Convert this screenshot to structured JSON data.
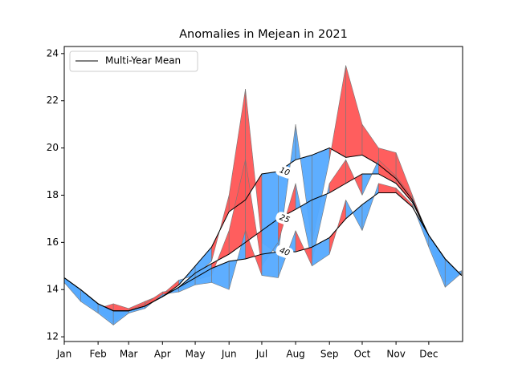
{
  "chart_data": {
    "type": "line",
    "title": "Anomalies in Mejean in 2021",
    "x": [
      0,
      15,
      31,
      45,
      59,
      74,
      90,
      105,
      120,
      135,
      151,
      166,
      181,
      196,
      212,
      227,
      243,
      258,
      273,
      288,
      304,
      319,
      334,
      349,
      364
    ],
    "xlim": [
      0,
      365
    ],
    "xticks": [
      {
        "value": 0,
        "label": "Jan"
      },
      {
        "value": 31,
        "label": "Feb"
      },
      {
        "value": 59,
        "label": "Mar"
      },
      {
        "value": 90,
        "label": "Apr"
      },
      {
        "value": 120,
        "label": "May"
      },
      {
        "value": 151,
        "label": "Jun"
      },
      {
        "value": 181,
        "label": "Jul"
      },
      {
        "value": 212,
        "label": "Aug"
      },
      {
        "value": 243,
        "label": "Sep"
      },
      {
        "value": 273,
        "label": "Oct"
      },
      {
        "value": 304,
        "label": "Nov"
      },
      {
        "value": 334,
        "label": "Dec"
      }
    ],
    "ylim": [
      11.8,
      24.3
    ],
    "yticks": [
      12,
      14,
      16,
      18,
      20,
      22,
      24
    ],
    "legend": "Multi-Year Mean",
    "legend_position": "upper left",
    "mean_color": "#000000",
    "above_color": "#ff5555",
    "below_color": "#55aaff",
    "depths": [
      {
        "label": "10",
        "mean": [
          14.5,
          14.0,
          13.4,
          13.1,
          13.1,
          13.3,
          13.7,
          14.2,
          15.0,
          15.8,
          17.3,
          17.8,
          18.9,
          19.0,
          19.5,
          19.7,
          20.0,
          19.6,
          19.7,
          19.3,
          18.7,
          17.8,
          16.3,
          15.3,
          14.6
        ],
        "observed": [
          14.4,
          13.8,
          13.2,
          13.4,
          13.2,
          13.5,
          13.8,
          14.4,
          14.6,
          15.2,
          18.0,
          22.5,
          16.0,
          15.5,
          21.0,
          16.0,
          19.5,
          23.5,
          21.0,
          20.0,
          19.8,
          18.0,
          16.2,
          14.5,
          14.8
        ]
      },
      {
        "label": "25",
        "mean": [
          14.5,
          14.0,
          13.4,
          13.1,
          13.1,
          13.3,
          13.7,
          14.1,
          14.7,
          15.1,
          15.5,
          16.0,
          16.5,
          17.0,
          17.4,
          17.8,
          18.1,
          18.5,
          18.9,
          18.9,
          18.5,
          17.7,
          16.3,
          15.3,
          14.6
        ],
        "observed": [
          14.3,
          13.6,
          13.1,
          12.6,
          13.1,
          13.4,
          13.9,
          14.0,
          14.4,
          14.6,
          16.5,
          19.5,
          15.0,
          16.0,
          18.5,
          15.2,
          18.5,
          19.5,
          18.0,
          19.5,
          18.8,
          17.9,
          16.0,
          14.3,
          14.7
        ]
      },
      {
        "label": "40",
        "mean": [
          14.5,
          14.0,
          13.4,
          13.1,
          13.1,
          13.3,
          13.7,
          14.1,
          14.5,
          14.9,
          15.2,
          15.3,
          15.5,
          15.6,
          15.6,
          15.8,
          16.2,
          17.0,
          17.6,
          18.1,
          18.1,
          17.5,
          16.3,
          15.3,
          14.6
        ],
        "observed": [
          14.3,
          13.5,
          13.0,
          12.5,
          13.0,
          13.2,
          13.8,
          13.9,
          14.2,
          14.3,
          14.0,
          16.5,
          14.6,
          14.5,
          16.5,
          15.0,
          15.5,
          17.8,
          16.5,
          18.5,
          18.3,
          17.6,
          15.8,
          14.1,
          14.7
        ]
      }
    ]
  }
}
